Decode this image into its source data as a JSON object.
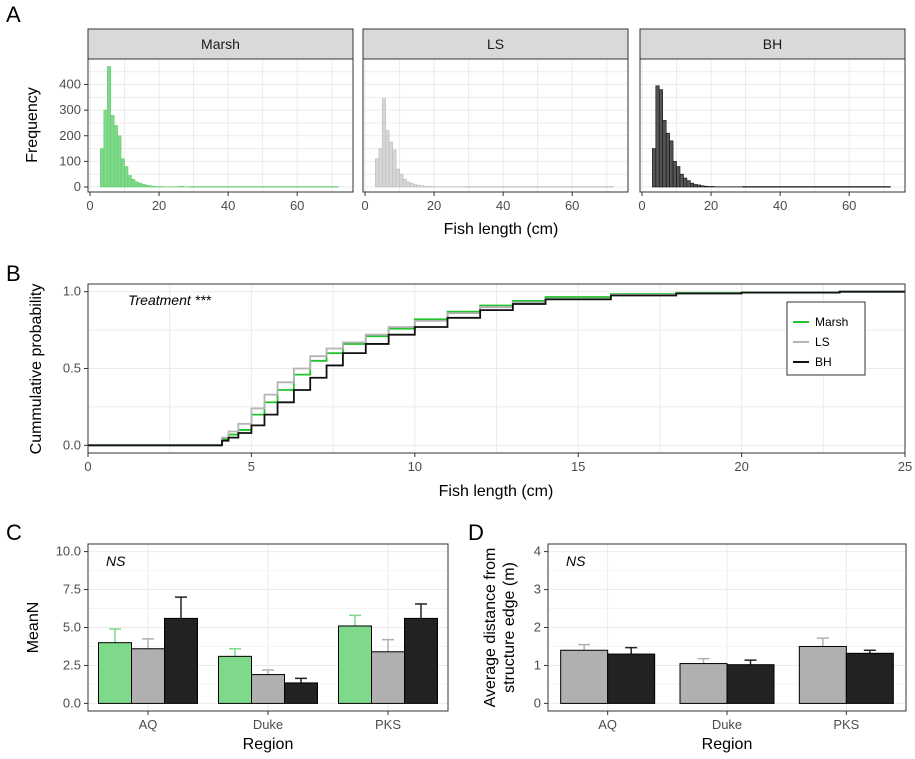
{
  "chart_data": [
    {
      "panel": "A",
      "type": "bar",
      "xlabel": "Fish length (cm)",
      "ylabel": "Frequency",
      "xticks": [
        "0",
        "20",
        "40",
        "60"
      ],
      "yticks": [
        "0",
        "100",
        "200",
        "300",
        "400"
      ],
      "xlim": [
        0,
        75
      ],
      "ylim": [
        0,
        480
      ],
      "bin_width": 1,
      "bin_starts": [
        3,
        4,
        5,
        6,
        7,
        8,
        9,
        10,
        11,
        12,
        13,
        14,
        15,
        16,
        17,
        18,
        19,
        20,
        21,
        22,
        23,
        24,
        25,
        26,
        27,
        28
      ],
      "facets": [
        {
          "name": "Marsh",
          "fill": "#7fd98a",
          "stroke": "#66cc70",
          "values": [
            150,
            300,
            470,
            280,
            240,
            200,
            110,
            80,
            45,
            30,
            20,
            15,
            10,
            7,
            5,
            3,
            2,
            2,
            1,
            1,
            1,
            1,
            1,
            3,
            1,
            1
          ],
          "tail_to": 72
        },
        {
          "name": "LS",
          "fill": "#d6d6d6",
          "stroke": "#bdbdbd",
          "values": [
            110,
            150,
            345,
            220,
            175,
            145,
            70,
            50,
            30,
            20,
            15,
            10,
            7,
            5,
            3,
            2,
            2,
            1,
            1,
            1,
            1,
            1,
            1,
            1,
            1,
            1
          ],
          "tail_to": 72
        },
        {
          "name": "BH",
          "fill": "#555555",
          "stroke": "#111111",
          "values": [
            150,
            395,
            380,
            260,
            210,
            180,
            100,
            80,
            50,
            35,
            25,
            15,
            10,
            8,
            5,
            3,
            2,
            2,
            1,
            1,
            1,
            1,
            1,
            1,
            1,
            1
          ],
          "tail_to": 72
        }
      ]
    },
    {
      "panel": "B",
      "type": "line",
      "xlabel": "Fish length (cm)",
      "ylabel": "Cummulative probability",
      "xticks": [
        "0",
        "5",
        "10",
        "15",
        "20",
        "25"
      ],
      "yticks": [
        "0.0",
        "0.5",
        "1.0"
      ],
      "xlim": [
        0,
        25
      ],
      "ylim": [
        -0.05,
        1.05
      ],
      "annotation": "Treatment ***",
      "legend_position": "right",
      "series": [
        {
          "name": "Marsh",
          "color": "#22c32e",
          "points": [
            [
              0,
              0
            ],
            [
              4,
              0
            ],
            [
              4.1,
              0.04
            ],
            [
              4.3,
              0.07
            ],
            [
              4.6,
              0.1
            ],
            [
              5,
              0.2
            ],
            [
              5.4,
              0.28
            ],
            [
              5.8,
              0.36
            ],
            [
              6.3,
              0.46
            ],
            [
              6.8,
              0.55
            ],
            [
              7.3,
              0.6
            ],
            [
              7.8,
              0.66
            ],
            [
              8.5,
              0.71
            ],
            [
              9.2,
              0.76
            ],
            [
              10,
              0.82
            ],
            [
              11,
              0.87
            ],
            [
              12,
              0.91
            ],
            [
              13,
              0.94
            ],
            [
              14,
              0.965
            ],
            [
              16,
              0.985
            ],
            [
              18,
              0.993
            ],
            [
              20,
              0.996
            ],
            [
              23,
              1.0
            ],
            [
              25,
              1.0
            ]
          ]
        },
        {
          "name": "LS",
          "color": "#b5b5b5",
          "points": [
            [
              0,
              0
            ],
            [
              4,
              0
            ],
            [
              4.1,
              0.05
            ],
            [
              4.3,
              0.09
            ],
            [
              4.6,
              0.14
            ],
            [
              5,
              0.24
            ],
            [
              5.4,
              0.33
            ],
            [
              5.8,
              0.41
            ],
            [
              6.3,
              0.5
            ],
            [
              6.8,
              0.58
            ],
            [
              7.3,
              0.63
            ],
            [
              7.8,
              0.67
            ],
            [
              8.5,
              0.72
            ],
            [
              9.2,
              0.77
            ],
            [
              10,
              0.81
            ],
            [
              11,
              0.86
            ],
            [
              12,
              0.9
            ],
            [
              13,
              0.93
            ],
            [
              14,
              0.955
            ],
            [
              16,
              0.98
            ],
            [
              18,
              0.99
            ],
            [
              20,
              0.995
            ],
            [
              23,
              1.0
            ],
            [
              25,
              1.0
            ]
          ]
        },
        {
          "name": "BH",
          "color": "#111111",
          "points": [
            [
              0,
              0
            ],
            [
              4,
              0
            ],
            [
              4.1,
              0.03
            ],
            [
              4.3,
              0.05
            ],
            [
              4.6,
              0.08
            ],
            [
              5,
              0.13
            ],
            [
              5.4,
              0.2
            ],
            [
              5.8,
              0.28
            ],
            [
              6.3,
              0.36
            ],
            [
              6.8,
              0.44
            ],
            [
              7.3,
              0.52
            ],
            [
              7.8,
              0.6
            ],
            [
              8.5,
              0.66
            ],
            [
              9.2,
              0.72
            ],
            [
              10,
              0.77
            ],
            [
              11,
              0.83
            ],
            [
              12,
              0.88
            ],
            [
              13,
              0.92
            ],
            [
              14,
              0.95
            ],
            [
              16,
              0.975
            ],
            [
              18,
              0.988
            ],
            [
              20,
              0.994
            ],
            [
              23,
              1.0
            ],
            [
              25,
              1.0
            ]
          ]
        }
      ]
    },
    {
      "panel": "C",
      "type": "bar",
      "xlabel": "Region",
      "ylabel": "MeanN",
      "categories": [
        "AQ",
        "Duke",
        "PKS"
      ],
      "yticks": [
        "0.0",
        "2.5",
        "5.0",
        "7.5",
        "10.0"
      ],
      "ylim": [
        -0.5,
        10.5
      ],
      "annotation": "NS",
      "series": [
        {
          "name": "Marsh",
          "color": "#7fd98a",
          "values": [
            4.0,
            3.1,
            5.1
          ],
          "errors": [
            0.9,
            0.5,
            0.7
          ]
        },
        {
          "name": "LS",
          "color": "#b0b0b0",
          "values": [
            3.6,
            1.9,
            3.4
          ],
          "errors": [
            0.65,
            0.3,
            0.8
          ]
        },
        {
          "name": "BH",
          "color": "#222222",
          "values": [
            5.6,
            1.35,
            5.6
          ],
          "errors": [
            1.4,
            0.3,
            0.95
          ]
        }
      ]
    },
    {
      "panel": "D",
      "type": "bar",
      "xlabel": "Region",
      "ylabel_lines": [
        "Average distance from",
        "structure edge (m)"
      ],
      "categories": [
        "AQ",
        "Duke",
        "PKS"
      ],
      "yticks": [
        "0",
        "1",
        "2",
        "3",
        "4"
      ],
      "ylim": [
        -0.2,
        4.2
      ],
      "annotation": "NS",
      "series": [
        {
          "name": "LS",
          "color": "#b0b0b0",
          "values": [
            1.4,
            1.05,
            1.5
          ],
          "errors": [
            0.15,
            0.13,
            0.22
          ]
        },
        {
          "name": "BH",
          "color": "#222222",
          "values": [
            1.3,
            1.02,
            1.32
          ],
          "errors": [
            0.17,
            0.12,
            0.08
          ]
        }
      ]
    }
  ]
}
